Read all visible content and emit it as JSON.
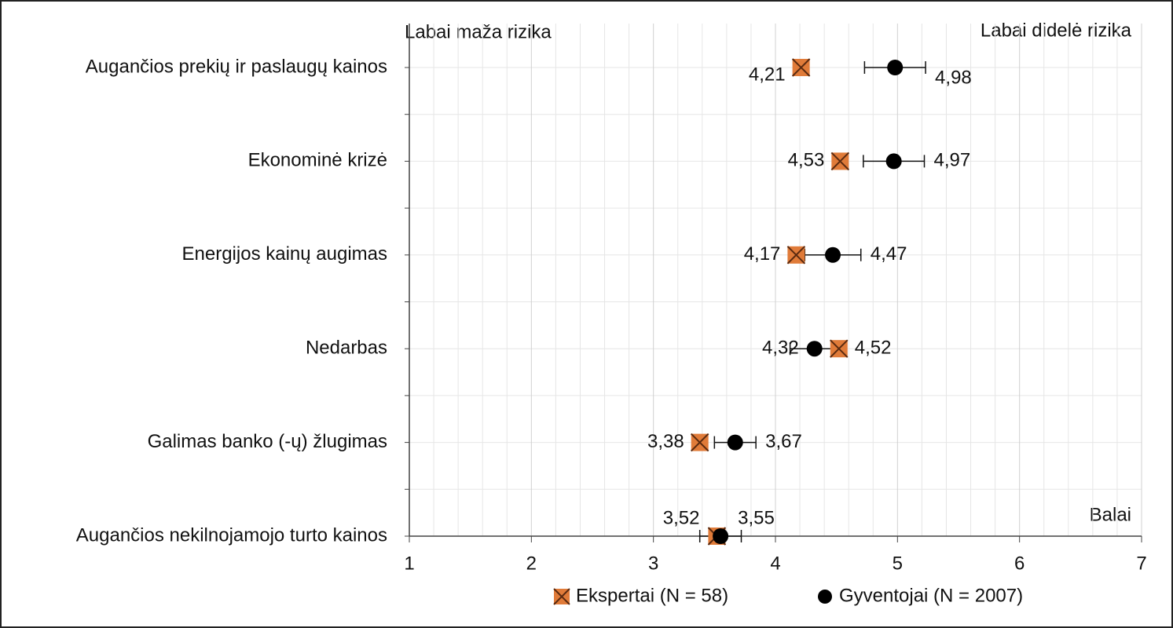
{
  "chart_data": {
    "type": "dot",
    "annotations": [
      "Labai maža rizika",
      "Labai didelė rizika",
      "Balai"
    ],
    "categories": [
      "Augančios prekių ir paslaugų kainos",
      "Ekonominė krizė",
      "Energijos kainų augimas",
      "Nedarbas",
      "Galimas banko (-ų) žlugimas",
      "Augančios nekilnojamojo turto kainos"
    ],
    "series": [
      {
        "name": "Ekspertai (N = 58)",
        "color": "#e07b39",
        "marker": "x-square",
        "values": [
          4.21,
          4.53,
          4.17,
          4.52,
          3.38,
          3.52
        ],
        "value_labels": [
          "4,21",
          "4,53",
          "4,17",
          "4,52",
          "3,38",
          "3,52"
        ]
      },
      {
        "name": "Gyventojai (N = 2007)",
        "color": "#000000",
        "marker": "circle",
        "values": [
          4.98,
          4.97,
          4.47,
          4.32,
          3.67,
          3.55
        ],
        "value_labels": [
          "4,98",
          "4,97",
          "4,47",
          "4,32",
          "3,67",
          "3,55"
        ],
        "errors": [
          0.25,
          0.25,
          0.23,
          0.2,
          0.17,
          0.17
        ]
      }
    ],
    "xlim": [
      1,
      7
    ],
    "xticks": [
      1,
      2,
      3,
      4,
      5,
      6,
      7
    ],
    "grid": true
  }
}
